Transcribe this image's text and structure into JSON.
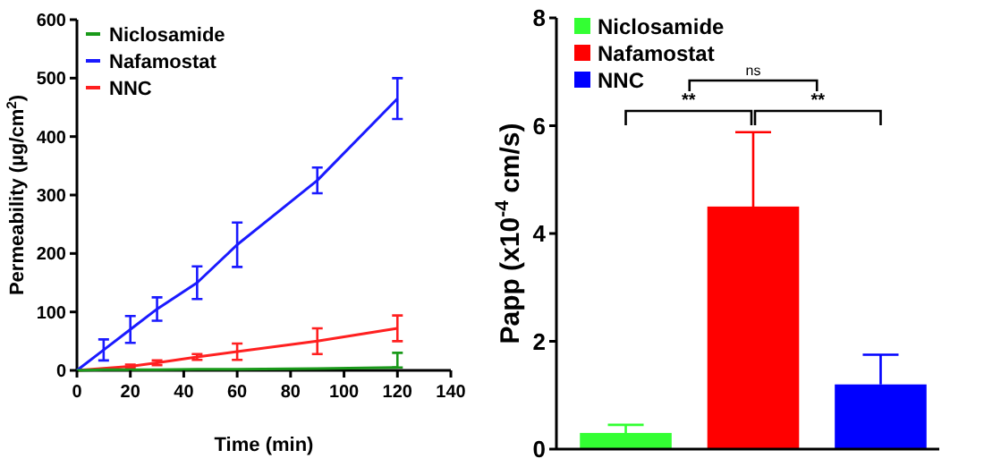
{
  "chart_data": [
    {
      "type": "line",
      "xlabel": "Time (min)",
      "ylabel": "Permeability (µg/cm$^{2}$)",
      "xlim": [
        0,
        140
      ],
      "xticks": [
        0,
        20,
        40,
        60,
        80,
        100,
        120,
        140
      ],
      "ylim": [
        0,
        600
      ],
      "yticks": [
        0,
        100,
        200,
        300,
        400,
        500,
        600
      ],
      "grid": false,
      "legend": "top left",
      "marker": "none",
      "line_style": "solid",
      "series": [
        {
          "name": "Niclosamide",
          "color": "#1a9a1a",
          "x": [
            0,
            10,
            20,
            30,
            45,
            60,
            90,
            120
          ],
          "values": [
            0,
            1,
            1,
            1,
            2,
            2,
            3,
            5
          ],
          "errors": [
            null,
            null,
            null,
            null,
            null,
            null,
            null,
            [
              5,
              30
            ]
          ]
        },
        {
          "name": "Nafamostat",
          "color": "#1a1aff",
          "x": [
            0,
            10,
            20,
            30,
            45,
            60,
            90,
            120
          ],
          "values": [
            0,
            35,
            70,
            105,
            150,
            215,
            325,
            465
          ],
          "errors": [
            null,
            18,
            23,
            20,
            28,
            38,
            22,
            35
          ]
        },
        {
          "name": "NNC",
          "color": "#ff2020",
          "x": [
            0,
            20,
            30,
            45,
            60,
            90,
            120
          ],
          "values": [
            0,
            7,
            13,
            23,
            32,
            50,
            72
          ],
          "errors": [
            null,
            3,
            4,
            5,
            14,
            22,
            22
          ]
        }
      ]
    },
    {
      "type": "bar",
      "categories": [
        null,
        null,
        null
      ],
      "ylabel": "Papp (x10$^{-4}$ cm/s)",
      "ylim": [
        0,
        8
      ],
      "yticks": [
        0,
        2,
        4,
        6,
        8
      ],
      "grid": false,
      "legend": "top left",
      "stacked": true,
      "annotations": [
        "**",
        "**",
        "ns"
      ],
      "series": [
        {
          "name": "Niclosamide",
          "color": "#33ff33",
          "values": [
            0.3,
            null,
            null
          ],
          "errors": [
            [
              0.3,
              0.45
            ],
            null,
            null
          ]
        },
        {
          "name": "Nafamostat",
          "color": "#ff0000",
          "values": [
            null,
            4.5,
            null
          ],
          "errors": [
            null,
            [
              4.5,
              5.88
            ],
            null
          ]
        },
        {
          "name": "NNC",
          "color": "#0000ff",
          "values": [
            null,
            null,
            1.2
          ],
          "errors": [
            null,
            null,
            [
              1.2,
              1.75
            ]
          ]
        }
      ]
    }
  ]
}
